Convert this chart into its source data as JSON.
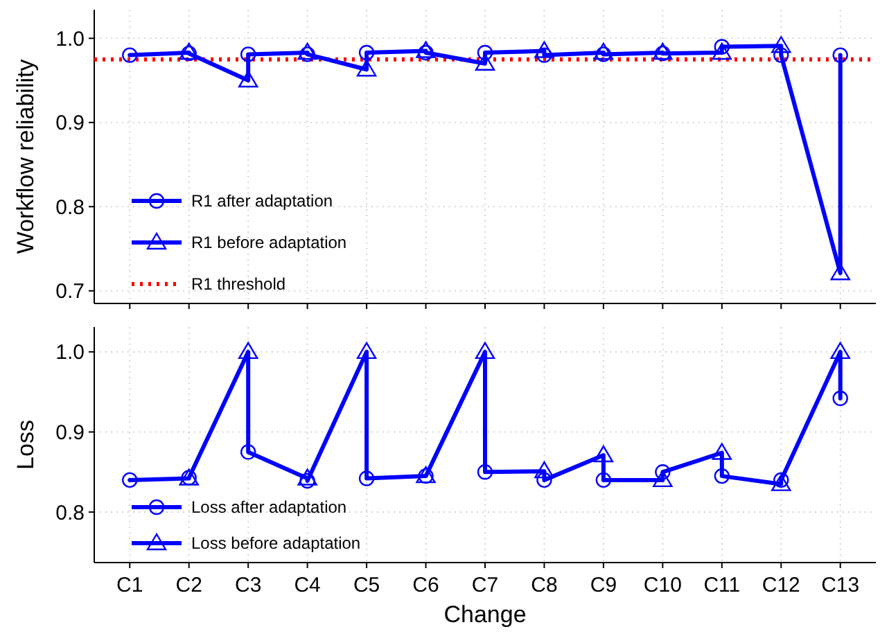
{
  "chart_data": [
    {
      "type": "line",
      "ylabel": "Workflow reliability",
      "categories": [
        "C1",
        "C2",
        "C3",
        "C4",
        "C5",
        "C6",
        "C7",
        "C8",
        "C9",
        "C10",
        "C11",
        "C12",
        "C13"
      ],
      "ylim": [
        0.685,
        1.034
      ],
      "tick_labels": "y",
      "grid": true,
      "legend": "bottom left",
      "yticks": [
        0.7,
        0.8,
        0.9,
        {
          "value": 1,
          "label": "1.0"
        }
      ],
      "series": [
        {
          "type": "line",
          "color": "#0000ff",
          "marker": "none",
          "x": [
            "C1",
            "C2",
            "C2",
            "C3",
            "C3",
            "C4",
            "C4",
            "C5",
            "C5",
            "C6",
            "C6",
            "C7",
            "C7",
            "C8",
            "C8",
            "C9",
            "C9",
            "C10",
            "C10",
            "C11",
            "C11",
            "C12",
            "C12",
            "C13",
            "C13"
          ],
          "values": [
            0.98,
            0.983,
            0.982,
            0.95,
            0.981,
            0.983,
            0.981,
            0.963,
            0.983,
            0.985,
            0.983,
            0.97,
            0.983,
            0.985,
            0.98,
            0.983,
            0.981,
            0.983,
            0.982,
            0.983,
            0.99,
            0.991,
            0.98,
            0.721,
            0.98
          ]
        },
        {
          "type": "scatter",
          "name": "R1 after adaptation",
          "color": "#0000ff",
          "marker": "circle",
          "x": [
            "C1",
            "C2",
            "C3",
            "C4",
            "C5",
            "C6",
            "C7",
            "C8",
            "C9",
            "C10",
            "C11",
            "C12",
            "C13"
          ],
          "values": [
            0.98,
            0.982,
            0.981,
            0.981,
            0.983,
            0.983,
            0.983,
            0.98,
            0.981,
            0.982,
            0.99,
            0.98,
            0.98
          ]
        },
        {
          "type": "scatter",
          "name": "R1 before adaptation",
          "color": "#0000ff",
          "marker": "triangle",
          "x": [
            "C2",
            "C3",
            "C4",
            "C5",
            "C6",
            "C7",
            "C8",
            "C9",
            "C10",
            "C11",
            "C12",
            "C13"
          ],
          "values": [
            0.983,
            0.95,
            0.983,
            0.963,
            0.985,
            0.97,
            0.985,
            0.983,
            0.983,
            0.983,
            0.991,
            0.721
          ]
        }
      ],
      "ref_lines": [
        {
          "axis": "y",
          "value": 0.975,
          "label": "R1 threshold",
          "color": "#ff0000",
          "line_style": "dotted"
        }
      ]
    },
    {
      "type": "line",
      "ylabel": "Loss",
      "xlabel": "Change",
      "categories": [
        "C1",
        "C2",
        "C3",
        "C4",
        "C5",
        "C6",
        "C7",
        "C8",
        "C9",
        "C10",
        "C11",
        "C12",
        "C13"
      ],
      "ylim": [
        0.737,
        1.031
      ],
      "grid": true,
      "legend": "bottom left",
      "yticks": [
        0.8,
        0.9,
        {
          "value": 1,
          "label": "1.0"
        }
      ],
      "series": [
        {
          "type": "line",
          "color": "#0000ff",
          "marker": "none",
          "x": [
            "C1",
            "C2",
            "C2",
            "C3",
            "C3",
            "C4",
            "C4",
            "C5",
            "C5",
            "C6",
            "C6",
            "C7",
            "C7",
            "C8",
            "C8",
            "C9",
            "C9",
            "C10",
            "C10",
            "C11",
            "C11",
            "C12",
            "C12",
            "C13",
            "C13"
          ],
          "values": [
            0.84,
            0.842,
            0.843,
            1.0,
            0.875,
            0.842,
            0.839,
            1.0,
            0.842,
            0.845,
            0.845,
            1.0,
            0.85,
            0.851,
            0.84,
            0.871,
            0.84,
            0.84,
            0.85,
            0.874,
            0.845,
            0.835,
            0.84,
            1.0,
            0.942
          ]
        },
        {
          "type": "scatter",
          "name": "Loss after adaptation",
          "color": "#0000ff",
          "marker": "circle",
          "x": [
            "C1",
            "C2",
            "C3",
            "C4",
            "C5",
            "C6",
            "C7",
            "C8",
            "C9",
            "C10",
            "C11",
            "C12",
            "C13"
          ],
          "values": [
            0.84,
            0.843,
            0.875,
            0.839,
            0.842,
            0.845,
            0.85,
            0.84,
            0.84,
            0.85,
            0.845,
            0.84,
            0.942
          ]
        },
        {
          "type": "scatter",
          "name": "Loss before adaptation",
          "color": "#0000ff",
          "marker": "triangle",
          "x": [
            "C2",
            "C3",
            "C4",
            "C5",
            "C6",
            "C7",
            "C8",
            "C9",
            "C10",
            "C11",
            "C12",
            "C13"
          ],
          "values": [
            0.842,
            1.0,
            0.842,
            1.0,
            0.845,
            1.0,
            0.851,
            0.871,
            0.84,
            0.874,
            0.835,
            1.0
          ]
        }
      ]
    }
  ]
}
